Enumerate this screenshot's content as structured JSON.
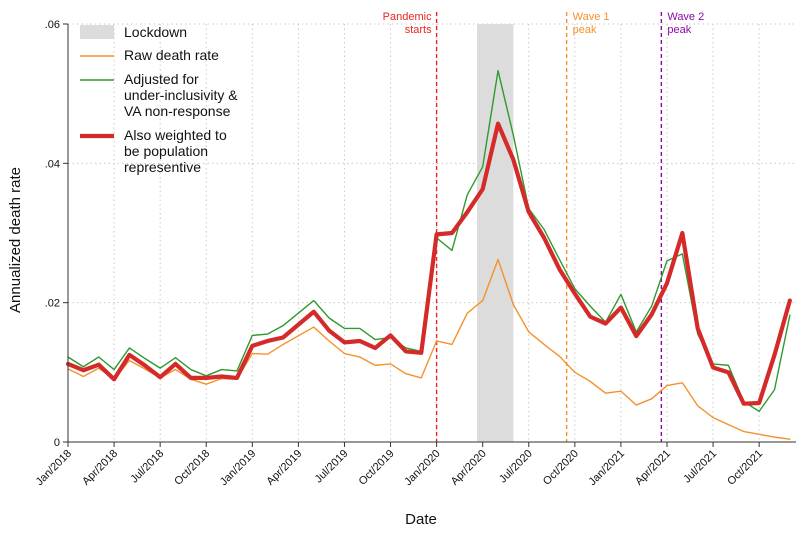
{
  "chart_data": {
    "type": "line",
    "xlabel": "Date",
    "ylabel": "Annualized death rate",
    "ylim": [
      0,
      0.06
    ],
    "y_ticks": [
      {
        "value": 0,
        "label": "0"
      },
      {
        "value": 0.02,
        "label": ".02"
      },
      {
        "value": 0.04,
        "label": ".04"
      },
      {
        "value": 0.06,
        "label": ".06"
      }
    ],
    "x_range": [
      "2018-01",
      "2021-12"
    ],
    "x_ticks": [
      {
        "date": "2018-01",
        "label": "Jan/2018"
      },
      {
        "date": "2018-04",
        "label": "Apr/2018"
      },
      {
        "date": "2018-07",
        "label": "Jul/2018"
      },
      {
        "date": "2018-10",
        "label": "Oct/2018"
      },
      {
        "date": "2019-01",
        "label": "Jan/2019"
      },
      {
        "date": "2019-04",
        "label": "Apr/2019"
      },
      {
        "date": "2019-07",
        "label": "Jul/2019"
      },
      {
        "date": "2019-10",
        "label": "Oct/2019"
      },
      {
        "date": "2020-01",
        "label": "Jan/2020"
      },
      {
        "date": "2020-04",
        "label": "Apr/2020"
      },
      {
        "date": "2020-07",
        "label": "Jul/2020"
      },
      {
        "date": "2020-10",
        "label": "Oct/2020"
      },
      {
        "date": "2021-01",
        "label": "Jan/2021"
      },
      {
        "date": "2021-04",
        "label": "Apr/2021"
      },
      {
        "date": "2021-07",
        "label": "Jul/2021"
      },
      {
        "date": "2021-10",
        "label": "Oct/2021"
      }
    ],
    "grid": true,
    "legend_position": "top-left",
    "shaded_region": {
      "label": "Lockdown",
      "x_start": "2020-03-20",
      "x_end": "2020-05-31",
      "y_top": 0.06,
      "color": "#dcdcdc"
    },
    "events": [
      {
        "date": "2020-01",
        "label_lines": [
          "Pandemic",
          "starts"
        ],
        "color": "#e8261f",
        "align": "end"
      },
      {
        "date": "2020-09-15",
        "label_lines": [
          "Wave 1",
          "peak"
        ],
        "color": "#f5912d",
        "align": "start"
      },
      {
        "date": "2021-03-20",
        "label_lines": [
          "Wave 2",
          "peak"
        ],
        "color": "#8b0aa5",
        "align": "start"
      }
    ],
    "series": [
      {
        "name": "Raw death rate",
        "legend_lines": [
          "Raw death rate"
        ],
        "color": "#f5912d",
        "width": 1.4,
        "points": [
          [
            "2018-01",
            0.0105
          ],
          [
            "2018-02",
            0.0094
          ],
          [
            "2018-03",
            0.0106
          ],
          [
            "2018-04",
            0.009
          ],
          [
            "2018-05",
            0.0117
          ],
          [
            "2018-06",
            0.0105
          ],
          [
            "2018-07",
            0.0092
          ],
          [
            "2018-08",
            0.0104
          ],
          [
            "2018-09",
            0.009
          ],
          [
            "2018-10",
            0.0083
          ],
          [
            "2018-11",
            0.0091
          ],
          [
            "2018-12",
            0.009
          ],
          [
            "2019-01",
            0.0127
          ],
          [
            "2019-02",
            0.0126
          ],
          [
            "2019-03",
            0.014
          ],
          [
            "2019-05",
            0.0165
          ],
          [
            "2019-06",
            0.0145
          ],
          [
            "2019-07",
            0.0127
          ],
          [
            "2019-08",
            0.0122
          ],
          [
            "2019-09",
            0.011
          ],
          [
            "2019-10",
            0.0112
          ],
          [
            "2019-11",
            0.0098
          ],
          [
            "2019-12",
            0.0092
          ],
          [
            "2020-01",
            0.0145
          ],
          [
            "2020-02",
            0.014
          ],
          [
            "2020-03",
            0.0185
          ],
          [
            "2020-04",
            0.0203
          ],
          [
            "2020-05",
            0.0262
          ],
          [
            "2020-06",
            0.0197
          ],
          [
            "2020-07",
            0.0158
          ],
          [
            "2020-08",
            0.014
          ],
          [
            "2020-09",
            0.0123
          ],
          [
            "2020-10",
            0.01
          ],
          [
            "2020-11",
            0.0087
          ],
          [
            "2020-12",
            0.007
          ],
          [
            "2021-01",
            0.0073
          ],
          [
            "2021-02",
            0.0053
          ],
          [
            "2021-03",
            0.0062
          ],
          [
            "2021-04",
            0.0081
          ],
          [
            "2021-05",
            0.0085
          ],
          [
            "2021-06",
            0.0052
          ],
          [
            "2021-07",
            0.0035
          ],
          [
            "2021-08",
            0.0025
          ],
          [
            "2021-09",
            0.0015
          ],
          [
            "2021-10",
            0.0011
          ],
          [
            "2021-11",
            0.0007
          ],
          [
            "2021-12",
            0.0004
          ]
        ]
      },
      {
        "name": "Adjusted for under-inclusivity & VA non-response",
        "legend_lines": [
          "Adjusted for",
          "under-inclusivity &",
          "VA non-response"
        ],
        "color": "#2f9a2f",
        "width": 1.4,
        "points": [
          [
            "2018-01",
            0.0122
          ],
          [
            "2018-02",
            0.0108
          ],
          [
            "2018-03",
            0.0122
          ],
          [
            "2018-04",
            0.0104
          ],
          [
            "2018-05",
            0.0135
          ],
          [
            "2018-06",
            0.012
          ],
          [
            "2018-07",
            0.0106
          ],
          [
            "2018-08",
            0.0121
          ],
          [
            "2018-09",
            0.0104
          ],
          [
            "2018-10",
            0.0095
          ],
          [
            "2018-11",
            0.0104
          ],
          [
            "2018-12",
            0.0102
          ],
          [
            "2019-01",
            0.0153
          ],
          [
            "2019-02",
            0.0155
          ],
          [
            "2019-03",
            0.0167
          ],
          [
            "2019-05",
            0.0203
          ],
          [
            "2019-06",
            0.0178
          ],
          [
            "2019-07",
            0.0163
          ],
          [
            "2019-08",
            0.0163
          ],
          [
            "2019-09",
            0.0147
          ],
          [
            "2019-10",
            0.015
          ],
          [
            "2019-11",
            0.0135
          ],
          [
            "2019-12",
            0.013
          ],
          [
            "2020-01",
            0.0293
          ],
          [
            "2020-02",
            0.0275
          ],
          [
            "2020-03",
            0.0355
          ],
          [
            "2020-04",
            0.0395
          ],
          [
            "2020-05",
            0.0533
          ],
          [
            "2020-06",
            0.044
          ],
          [
            "2020-07",
            0.0335
          ],
          [
            "2020-08",
            0.0305
          ],
          [
            "2020-09",
            0.0262
          ],
          [
            "2020-10",
            0.022
          ],
          [
            "2020-11",
            0.0195
          ],
          [
            "2020-12",
            0.0172
          ],
          [
            "2021-01",
            0.0212
          ],
          [
            "2021-02",
            0.0158
          ],
          [
            "2021-03",
            0.0195
          ],
          [
            "2021-04",
            0.026
          ],
          [
            "2021-05",
            0.027
          ],
          [
            "2021-06",
            0.0155
          ],
          [
            "2021-07",
            0.0112
          ],
          [
            "2021-08",
            0.011
          ],
          [
            "2021-09",
            0.0058
          ],
          [
            "2021-10",
            0.0044
          ],
          [
            "2021-11",
            0.0075
          ],
          [
            "2021-12",
            0.0182
          ]
        ]
      },
      {
        "name": "Also weighted to be population representive",
        "legend_lines": [
          "Also weighted to",
          "be population",
          "representive"
        ],
        "color": "#d42a2a",
        "width": 4.2,
        "points": [
          [
            "2018-01",
            0.0112
          ],
          [
            "2018-02",
            0.0103
          ],
          [
            "2018-03",
            0.0111
          ],
          [
            "2018-04",
            0.009
          ],
          [
            "2018-05",
            0.0125
          ],
          [
            "2018-06",
            0.011
          ],
          [
            "2018-07",
            0.0093
          ],
          [
            "2018-08",
            0.0112
          ],
          [
            "2018-09",
            0.0092
          ],
          [
            "2018-10",
            0.0092
          ],
          [
            "2018-11",
            0.0094
          ],
          [
            "2018-12",
            0.0092
          ],
          [
            "2019-01",
            0.0138
          ],
          [
            "2019-02",
            0.0145
          ],
          [
            "2019-03",
            0.015
          ],
          [
            "2019-05",
            0.0187
          ],
          [
            "2019-06",
            0.016
          ],
          [
            "2019-07",
            0.0143
          ],
          [
            "2019-08",
            0.0145
          ],
          [
            "2019-09",
            0.0135
          ],
          [
            "2019-10",
            0.0153
          ],
          [
            "2019-11",
            0.013
          ],
          [
            "2019-12",
            0.0128
          ],
          [
            "2020-01",
            0.0298
          ],
          [
            "2020-02",
            0.03
          ],
          [
            "2020-03",
            0.033
          ],
          [
            "2020-04",
            0.0363
          ],
          [
            "2020-05",
            0.0457
          ],
          [
            "2020-06",
            0.0405
          ],
          [
            "2020-07",
            0.033
          ],
          [
            "2020-08",
            0.0293
          ],
          [
            "2020-09",
            0.0248
          ],
          [
            "2020-10",
            0.0213
          ],
          [
            "2020-11",
            0.018
          ],
          [
            "2020-12",
            0.017
          ],
          [
            "2021-01",
            0.0193
          ],
          [
            "2021-02",
            0.0152
          ],
          [
            "2021-03",
            0.0183
          ],
          [
            "2021-04",
            0.0228
          ],
          [
            "2021-05",
            0.03
          ],
          [
            "2021-06",
            0.0163
          ],
          [
            "2021-07",
            0.0107
          ],
          [
            "2021-08",
            0.01
          ],
          [
            "2021-09",
            0.0055
          ],
          [
            "2021-10",
            0.0056
          ],
          [
            "2021-11",
            0.0125
          ],
          [
            "2021-12",
            0.0203
          ]
        ]
      }
    ]
  }
}
